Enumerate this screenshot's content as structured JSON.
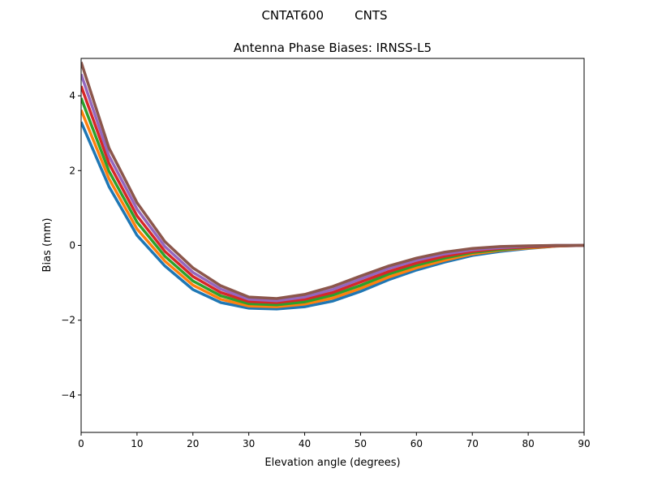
{
  "chart_data": {
    "type": "line",
    "suptitle": "CNTAT600        CNTS",
    "title": "Antenna Phase Biases: IRNSS-L5",
    "xlabel": "Elevation angle (degrees)",
    "ylabel": "Bias (mm)",
    "xlim": [
      0,
      90
    ],
    "ylim": [
      -5,
      5
    ],
    "xticks": [
      0,
      10,
      20,
      30,
      40,
      50,
      60,
      70,
      80,
      90
    ],
    "yticks": [
      -4,
      -2,
      0,
      2,
      4
    ],
    "ytick_labels": [
      "−4",
      "−2",
      "0",
      "2",
      "4"
    ],
    "grid": false,
    "colors": [
      "#1f77b4",
      "#ff7f0e",
      "#2ca02c",
      "#d62728",
      "#9467bd",
      "#8c564b",
      "#e377c2",
      "#7f7f7f",
      "#bcbd22",
      "#17becf"
    ],
    "x": [
      0,
      5,
      10,
      15,
      20,
      25,
      30,
      35,
      40,
      45,
      50,
      55,
      60,
      65,
      70,
      75,
      80,
      85,
      90
    ],
    "series": [
      {
        "values": [
          3.3,
          1.57,
          0.27,
          -0.55,
          -1.18,
          -1.53,
          -1.68,
          -1.7,
          -1.64,
          -1.49,
          -1.23,
          -0.92,
          -0.66,
          -0.45,
          -0.27,
          -0.16,
          -0.08,
          -0.02,
          0
        ]
      },
      {
        "values": [
          3.62,
          1.78,
          0.44,
          -0.42,
          -1.06,
          -1.44,
          -1.62,
          -1.64,
          -1.57,
          -1.41,
          -1.15,
          -0.85,
          -0.6,
          -0.4,
          -0.23,
          -0.13,
          -0.07,
          -0.02,
          0
        ]
      },
      {
        "values": [
          3.94,
          1.98,
          0.62,
          -0.29,
          -0.95,
          -1.35,
          -1.56,
          -1.59,
          -1.51,
          -1.33,
          -1.07,
          -0.77,
          -0.53,
          -0.34,
          -0.19,
          -0.11,
          -0.05,
          -0.01,
          0
        ]
      },
      {
        "values": [
          4.26,
          2.19,
          0.79,
          -0.16,
          -0.83,
          -1.26,
          -1.5,
          -1.53,
          -1.44,
          -1.26,
          -0.98,
          -0.7,
          -0.47,
          -0.29,
          -0.16,
          -0.08,
          -0.04,
          -0.01,
          0
        ]
      },
      {
        "values": [
          4.58,
          2.39,
          0.97,
          -0.03,
          -0.72,
          -1.17,
          -1.44,
          -1.48,
          -1.38,
          -1.18,
          -0.9,
          -0.62,
          -0.4,
          -0.23,
          -0.12,
          -0.06,
          -0.02,
          0,
          0
        ]
      },
      {
        "values": [
          4.9,
          2.6,
          1.14,
          0.1,
          -0.6,
          -1.08,
          -1.38,
          -1.42,
          -1.31,
          -1.1,
          -0.82,
          -0.55,
          -0.34,
          -0.18,
          -0.08,
          -0.03,
          -0.01,
          0,
          0
        ]
      }
    ]
  }
}
